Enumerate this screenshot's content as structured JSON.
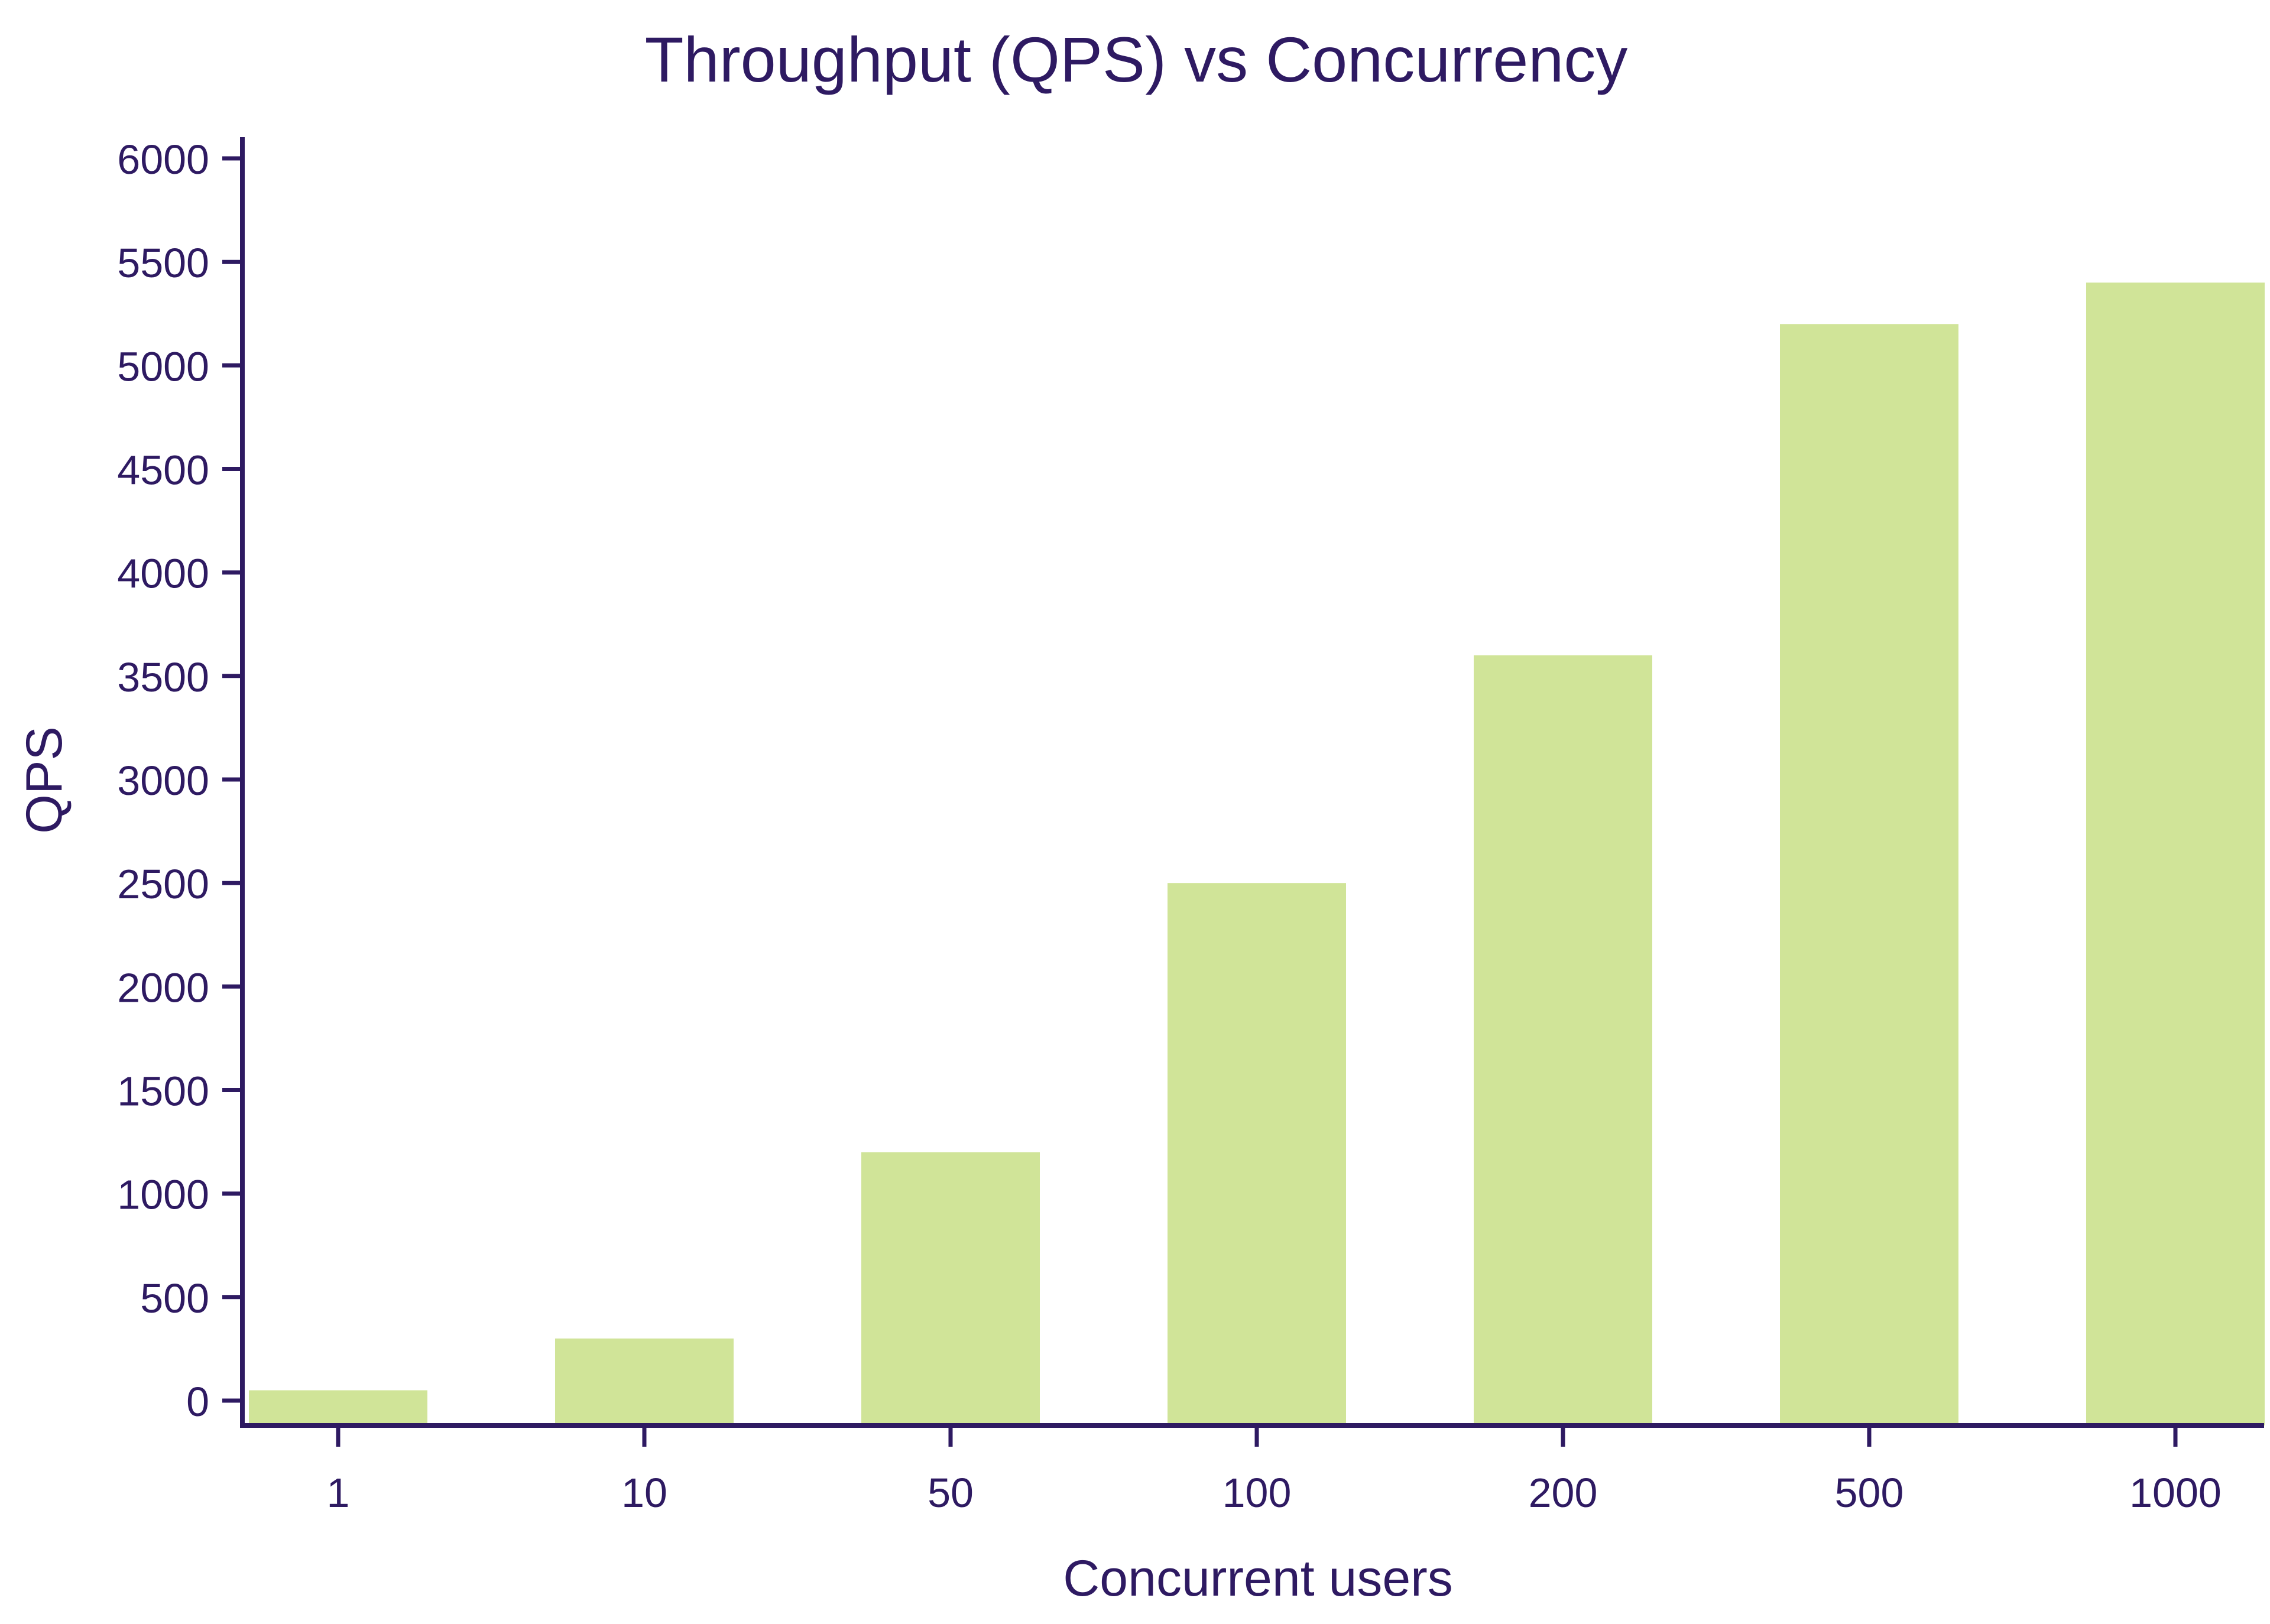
{
  "chart_data": {
    "type": "bar",
    "title": "Throughput (QPS) vs Concurrency",
    "xlabel": "Concurrent users",
    "ylabel": "QPS",
    "categories": [
      "1",
      "10",
      "50",
      "100",
      "200",
      "500",
      "1000"
    ],
    "values": [
      50,
      300,
      1200,
      2500,
      3600,
      5200,
      5400
    ],
    "ylim": [
      -150,
      6100
    ],
    "yticks": [
      0,
      500,
      1000,
      1500,
      2000,
      2500,
      3000,
      3500,
      4000,
      4500,
      5000,
      5500,
      6000
    ],
    "grid": false,
    "legend": "none",
    "colors": {
      "bar": "#d0e498",
      "axis": "#2e1a62",
      "text": "#2e1a62"
    }
  }
}
